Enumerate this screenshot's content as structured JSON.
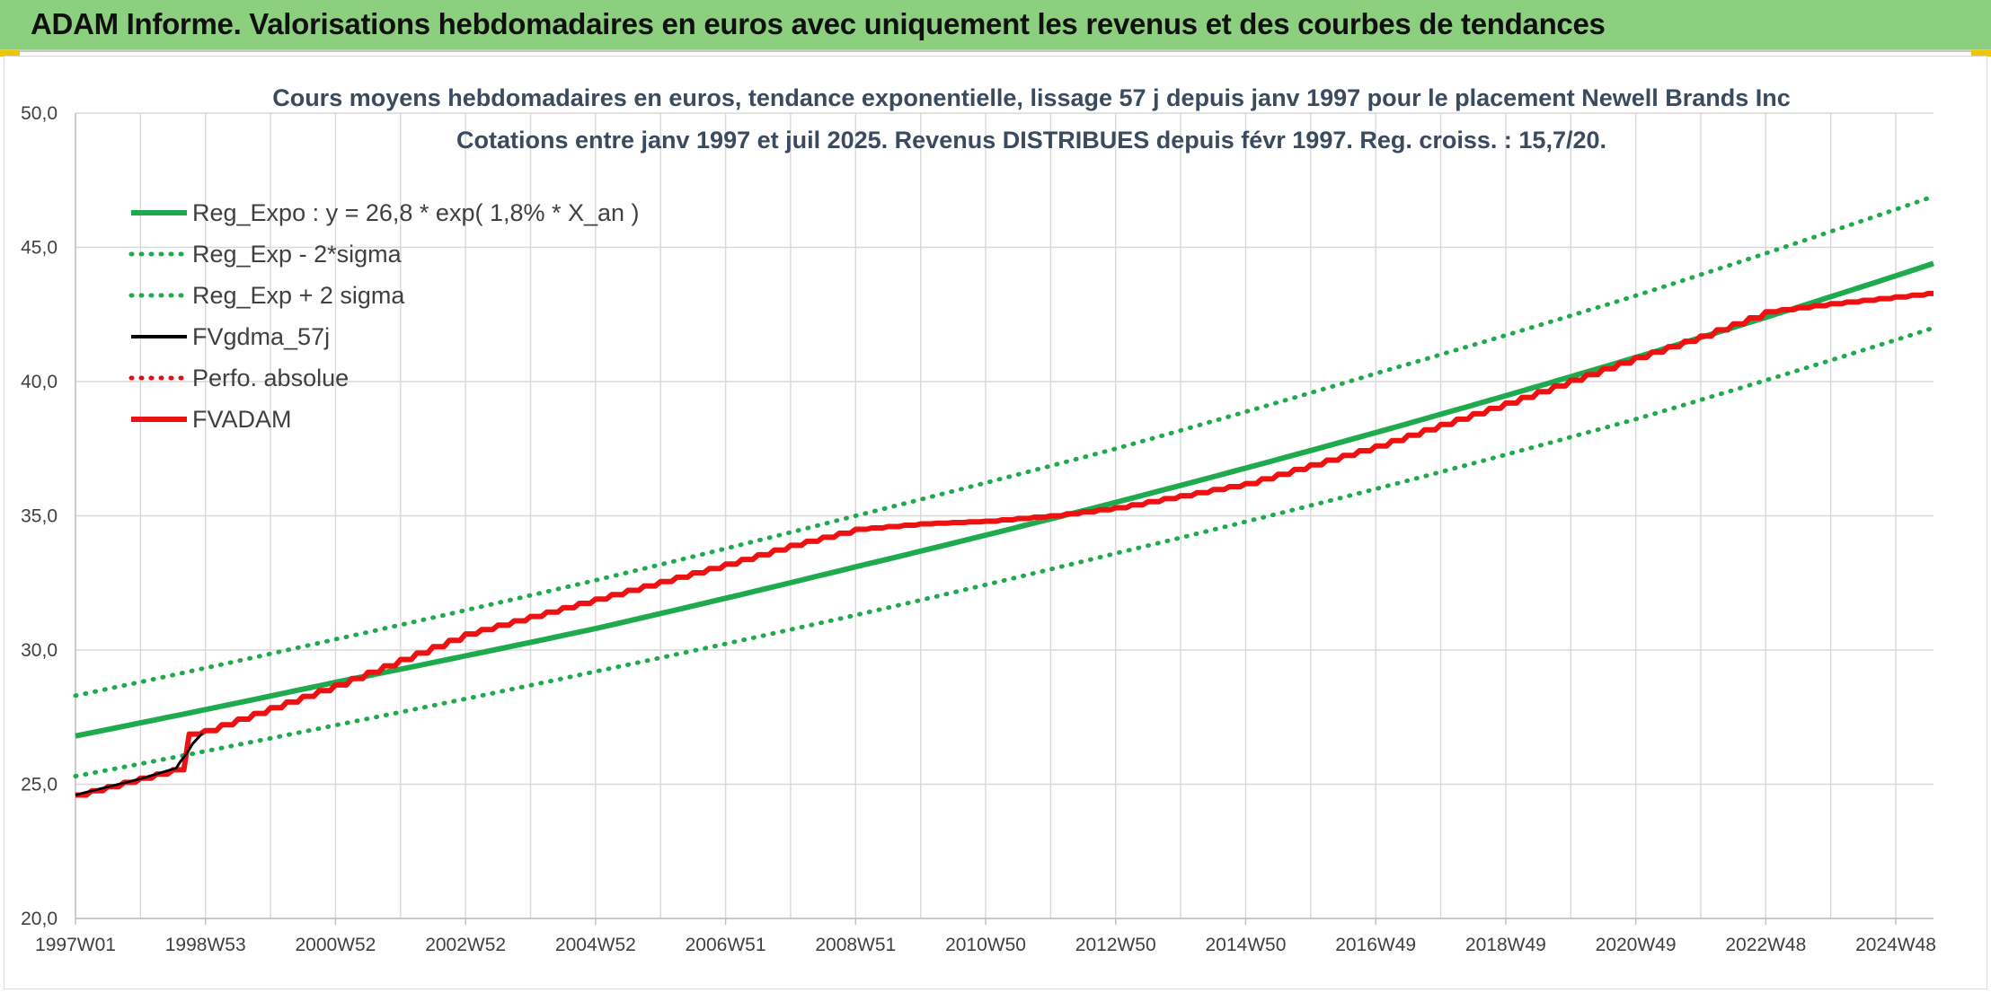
{
  "header": {
    "title": "ADAM Informe. Valorisations hebdomadaires en euros avec uniquement les revenus et des courbes de tendances"
  },
  "colors": {
    "banner": "#8ccf7e",
    "trend": "#1faa4e",
    "band": "#1faa4e",
    "fvgdma": "#000000",
    "perfo": "#e01010",
    "fvadam": "#ee1111"
  },
  "chart_data": {
    "type": "line",
    "title": "Cours moyens hebdomadaires en euros, tendance exponentielle, lissage 57 j depuis janv 1997 pour le placement Newell Brands Inc",
    "subtitle": "Cotations entre janv 1997 et juil 2025. Revenus DISTRIBUES depuis févr 1997. Reg. croiss. : 15,7/20.",
    "xlabel": "",
    "ylabel": "",
    "x_ticks": [
      "1997W01",
      "1998W53",
      "2000W52",
      "2002W52",
      "2004W52",
      "2006W51",
      "2008W51",
      "2010W50",
      "2012W50",
      "2014W50",
      "2016W49",
      "2018W49",
      "2020W49",
      "2022W48",
      "2024W48"
    ],
    "x_tick_years": [
      1997.0,
      1999.0,
      2001.0,
      2003.0,
      2005.0,
      2007.0,
      2009.0,
      2011.0,
      2013.0,
      2015.0,
      2017.0,
      2019.0,
      2021.0,
      2023.0,
      2025.0
    ],
    "xlim": [
      1997.0,
      2025.58
    ],
    "y_ticks": [
      "20,0",
      "25,0",
      "30,0",
      "35,0",
      "40,0",
      "45,0",
      "50,0"
    ],
    "ylim": [
      20,
      50
    ],
    "grid": true,
    "legend_position": "top-left",
    "series": [
      {
        "name": "Reg_Expo : y = 26,8 * exp( 1,8% *  X_an )",
        "style": "solid-thick",
        "color": "#1faa4e",
        "x": [
          1997.0,
          2001.0,
          2005.0,
          2009.0,
          2013.0,
          2017.0,
          2021.0,
          2025.58
        ],
        "y": [
          26.8,
          28.8,
          30.8,
          33.1,
          35.5,
          38.1,
          40.9,
          44.4
        ]
      },
      {
        "name": "Reg_Exp - 2*sigma",
        "style": "dotted",
        "color": "#1faa4e",
        "x": [
          1997.0,
          2001.0,
          2005.0,
          2009.0,
          2013.0,
          2017.0,
          2021.0,
          2025.58
        ],
        "y": [
          25.3,
          27.2,
          29.2,
          31.3,
          33.6,
          36.0,
          38.6,
          42.0
        ]
      },
      {
        "name": "Reg_Exp + 2 sigma",
        "style": "dotted",
        "color": "#1faa4e",
        "x": [
          1997.0,
          2001.0,
          2005.0,
          2009.0,
          2013.0,
          2017.0,
          2021.0,
          2025.58
        ],
        "y": [
          28.3,
          30.4,
          32.6,
          35.0,
          37.5,
          40.3,
          43.2,
          46.9
        ]
      },
      {
        "name": "FVgdma_57j",
        "style": "solid-thin",
        "color": "#000000",
        "x": [
          1997.0,
          1998.0,
          1998.55,
          1998.6,
          1998.7,
          1998.8,
          1998.95
        ],
        "y": [
          24.6,
          25.2,
          25.6,
          25.8,
          26.1,
          26.5,
          26.9
        ]
      },
      {
        "name": "Perfo. absolue",
        "style": "dotted",
        "color": "#e01010",
        "x": [],
        "y": []
      },
      {
        "name": "FVADAM",
        "style": "solid-thick-stepped",
        "color": "#ee1111",
        "x": [
          1997.0,
          1998.6,
          1998.62,
          1999.0,
          2001.0,
          2003.0,
          2005.0,
          2007.0,
          2008.0,
          2009.0,
          2010.0,
          2011.0,
          2012.0,
          2013.0,
          2015.0,
          2017.0,
          2019.0,
          2021.0,
          2022.0,
          2023.0,
          2024.0,
          2025.58
        ],
        "y": [
          24.6,
          25.6,
          26.8,
          27.0,
          28.7,
          30.6,
          31.9,
          33.2,
          33.9,
          34.5,
          34.7,
          34.8,
          35.0,
          35.3,
          36.2,
          37.6,
          39.2,
          40.9,
          41.7,
          42.6,
          42.9,
          43.3
        ]
      }
    ]
  }
}
